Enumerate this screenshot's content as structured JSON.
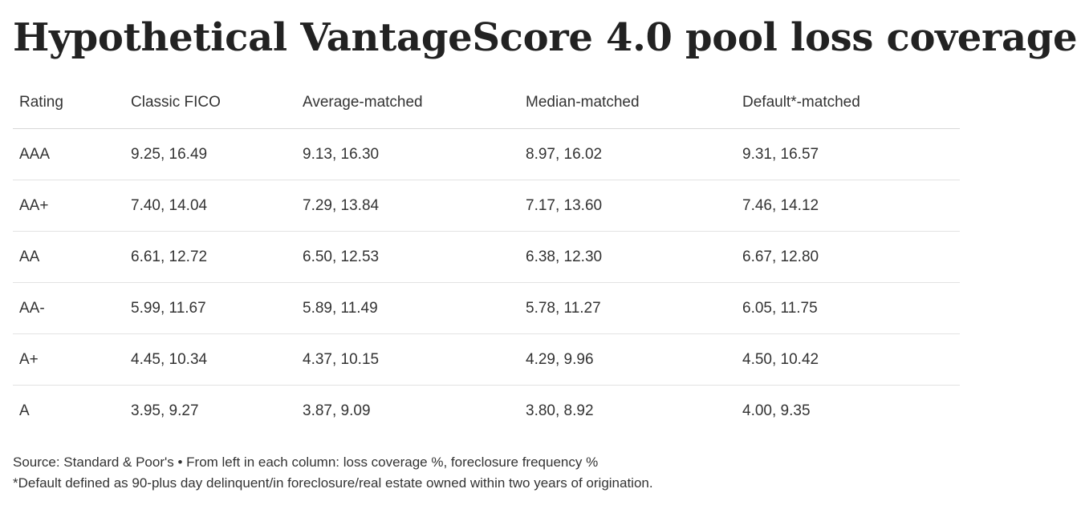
{
  "title": "Hypothetical VantageScore 4.0 pool loss coverage",
  "table": {
    "headers": [
      "Rating",
      "Classic FICO",
      "Average-matched",
      "Median-matched",
      "Default*-matched"
    ],
    "rows": [
      [
        "AAA",
        "9.25, 16.49",
        "9.13, 16.30",
        "8.97, 16.02",
        "9.31, 16.57"
      ],
      [
        "AA+",
        "7.40, 14.04",
        "7.29, 13.84",
        "7.17, 13.60",
        "7.46, 14.12"
      ],
      [
        "AA",
        "6.61, 12.72",
        "6.50, 12.53",
        "6.38, 12.30",
        "6.67, 12.80"
      ],
      [
        "AA-",
        "5.99, 11.67",
        "5.89, 11.49",
        "5.78, 11.27",
        "6.05, 11.75"
      ],
      [
        "A+",
        "4.45, 10.34",
        "4.37, 10.15",
        "4.29, 9.96",
        "4.50, 10.42"
      ],
      [
        "A",
        "3.95, 9.27",
        "3.87, 9.09",
        "3.80, 8.92",
        "4.00, 9.35"
      ]
    ]
  },
  "notes": {
    "source": "Source: Standard & Poor's • From left in each column: loss coverage %, foreclosure frequency %",
    "footnote": "*Default defined as 90-plus day delinquent/in foreclosure/real estate owned within two years of origination."
  }
}
